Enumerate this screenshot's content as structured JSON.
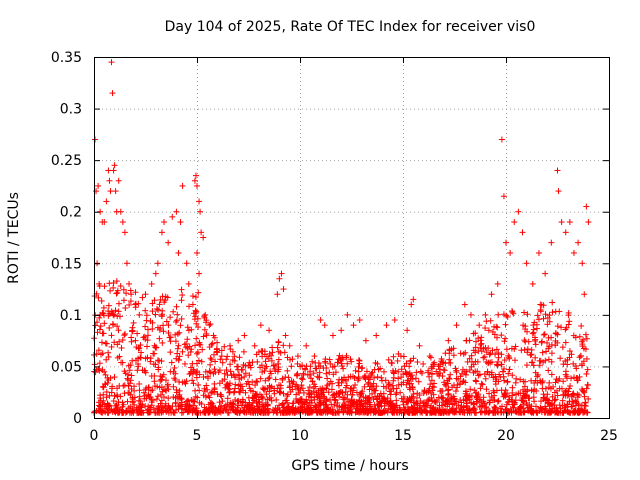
{
  "chart_data": {
    "type": "scatter",
    "title": "Day 104 of 2025, Rate Of TEC Index for receiver vis0",
    "xlabel": "GPS time / hours",
    "ylabel": "ROTI / TECUs",
    "xlim": [
      0,
      25
    ],
    "ylim": [
      0,
      0.35
    ],
    "xticks": [
      0,
      5,
      10,
      15,
      20,
      25
    ],
    "xtick_labels": [
      "0",
      "5",
      "10",
      "15",
      "20",
      "25"
    ],
    "yticks": [
      0,
      0.05,
      0.1,
      0.15,
      0.2,
      0.25,
      0.3,
      0.35
    ],
    "ytick_labels": [
      "0",
      "0.05",
      "0.1",
      "0.15",
      "0.2",
      "0.25",
      "0.3",
      "0.35"
    ],
    "grid": true,
    "marker": "plus",
    "color": "#ff0000",
    "series": [
      {
        "name": "ROTI",
        "points": [
          [
            0.05,
            0.27
          ],
          [
            0.1,
            0.22
          ],
          [
            0.2,
            0.225
          ],
          [
            0.3,
            0.2
          ],
          [
            0.15,
            0.15
          ],
          [
            0.25,
            0.13
          ],
          [
            0.3,
            0.1
          ],
          [
            0.4,
            0.19
          ],
          [
            0.5,
            0.19
          ],
          [
            0.6,
            0.21
          ],
          [
            0.7,
            0.24
          ],
          [
            0.75,
            0.23
          ],
          [
            0.8,
            0.22
          ],
          [
            0.85,
            0.345
          ],
          [
            0.9,
            0.315
          ],
          [
            0.95,
            0.24
          ],
          [
            1.0,
            0.245
          ],
          [
            1.05,
            0.22
          ],
          [
            1.1,
            0.2
          ],
          [
            1.2,
            0.23
          ],
          [
            1.3,
            0.2
          ],
          [
            1.4,
            0.19
          ],
          [
            1.5,
            0.18
          ],
          [
            1.6,
            0.15
          ],
          [
            1.7,
            0.13
          ],
          [
            1.8,
            0.12
          ],
          [
            2.0,
            0.11
          ],
          [
            2.2,
            0.1
          ],
          [
            2.5,
            0.12
          ],
          [
            2.8,
            0.13
          ],
          [
            3.0,
            0.14
          ],
          [
            3.1,
            0.15
          ],
          [
            3.3,
            0.18
          ],
          [
            3.4,
            0.19
          ],
          [
            3.6,
            0.17
          ],
          [
            3.8,
            0.195
          ],
          [
            4.0,
            0.2
          ],
          [
            4.1,
            0.16
          ],
          [
            4.2,
            0.19
          ],
          [
            4.3,
            0.225
          ],
          [
            4.5,
            0.15
          ],
          [
            4.6,
            0.13
          ],
          [
            4.8,
            0.11
          ],
          [
            4.9,
            0.23
          ],
          [
            4.95,
            0.235
          ],
          [
            5.0,
            0.225
          ],
          [
            5.1,
            0.21
          ],
          [
            5.15,
            0.2
          ],
          [
            5.2,
            0.18
          ],
          [
            5.3,
            0.175
          ],
          [
            5.0,
            0.16
          ],
          [
            5.1,
            0.14
          ],
          [
            5.4,
            0.1
          ],
          [
            5.6,
            0.09
          ],
          [
            5.8,
            0.08
          ],
          [
            6.2,
            0.06
          ],
          [
            6.6,
            0.07
          ],
          [
            7.0,
            0.075
          ],
          [
            7.3,
            0.08
          ],
          [
            7.8,
            0.07
          ],
          [
            8.1,
            0.09
          ],
          [
            8.5,
            0.085
          ],
          [
            8.9,
            0.12
          ],
          [
            9.0,
            0.135
          ],
          [
            9.1,
            0.14
          ],
          [
            9.2,
            0.125
          ],
          [
            9.3,
            0.08
          ],
          [
            9.5,
            0.07
          ],
          [
            9.9,
            0.06
          ],
          [
            10.3,
            0.07
          ],
          [
            10.7,
            0.06
          ],
          [
            11.0,
            0.095
          ],
          [
            11.2,
            0.09
          ],
          [
            11.6,
            0.08
          ],
          [
            12.0,
            0.085
          ],
          [
            12.3,
            0.1
          ],
          [
            12.6,
            0.09
          ],
          [
            12.9,
            0.095
          ],
          [
            13.2,
            0.075
          ],
          [
            13.7,
            0.08
          ],
          [
            14.2,
            0.09
          ],
          [
            14.6,
            0.095
          ],
          [
            14.9,
            0.06
          ],
          [
            15.2,
            0.085
          ],
          [
            15.4,
            0.11
          ],
          [
            15.5,
            0.115
          ],
          [
            15.8,
            0.07
          ],
          [
            16.3,
            0.06
          ],
          [
            16.8,
            0.05
          ],
          [
            17.2,
            0.075
          ],
          [
            17.6,
            0.09
          ],
          [
            18.0,
            0.11
          ],
          [
            18.3,
            0.1
          ],
          [
            18.7,
            0.09
          ],
          [
            19.0,
            0.1
          ],
          [
            19.3,
            0.12
          ],
          [
            19.6,
            0.13
          ],
          [
            19.8,
            0.27
          ],
          [
            19.9,
            0.215
          ],
          [
            20.0,
            0.17
          ],
          [
            20.2,
            0.16
          ],
          [
            20.4,
            0.19
          ],
          [
            20.6,
            0.2
          ],
          [
            20.8,
            0.18
          ],
          [
            21.0,
            0.15
          ],
          [
            21.3,
            0.13
          ],
          [
            21.6,
            0.16
          ],
          [
            21.9,
            0.14
          ],
          [
            22.2,
            0.17
          ],
          [
            22.5,
            0.24
          ],
          [
            22.55,
            0.22
          ],
          [
            22.7,
            0.19
          ],
          [
            22.9,
            0.18
          ],
          [
            23.1,
            0.19
          ],
          [
            23.3,
            0.16
          ],
          [
            23.5,
            0.17
          ],
          [
            23.7,
            0.15
          ],
          [
            23.9,
            0.205
          ],
          [
            24.0,
            0.19
          ],
          [
            23.8,
            0.12
          ]
        ]
      }
    ],
    "density_envelope": {
      "x": [
        0,
        1,
        2,
        3,
        4,
        5,
        6,
        7,
        8,
        9,
        10,
        11,
        12,
        13,
        14,
        15,
        16,
        17,
        18,
        19,
        20,
        21,
        22,
        23,
        24
      ],
      "max": [
        0.12,
        0.14,
        0.12,
        0.11,
        0.12,
        0.12,
        0.07,
        0.06,
        0.06,
        0.07,
        0.05,
        0.05,
        0.06,
        0.05,
        0.05,
        0.06,
        0.05,
        0.06,
        0.07,
        0.09,
        0.1,
        0.1,
        0.11,
        0.1,
        0.08
      ]
    }
  }
}
